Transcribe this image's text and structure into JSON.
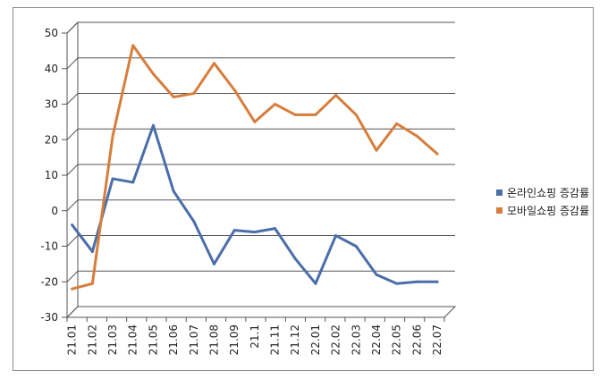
{
  "chart_data": {
    "type": "line",
    "title": "",
    "xlabel": "",
    "ylabel": "",
    "categories": [
      "21.01",
      "21.02",
      "21.03",
      "21.04",
      "21.05",
      "21.06",
      "21.07",
      "21.08",
      "21.09",
      "21.1",
      "21.11",
      "21.12",
      "22.01",
      "22.02",
      "22.03",
      "22.04",
      "22.05",
      "22.06",
      "22.07"
    ],
    "ylim": [
      -30,
      50
    ],
    "yticks": [
      -30,
      -20,
      -10,
      0,
      10,
      20,
      30,
      40,
      50
    ],
    "ytick_labels": [
      "-30",
      "-20",
      "-10",
      "0",
      "10",
      "20",
      "30",
      "40",
      "50"
    ],
    "grid": true,
    "legend_position": "right",
    "series": [
      {
        "name": "온라인쇼핑 증감률",
        "color": "#4a6ea9",
        "values": [
          -4,
          -11.5,
          9,
          8,
          24,
          5.5,
          -3,
          -15,
          -5.5,
          -6,
          -5,
          -13.5,
          -20.5,
          -7,
          -10,
          -18,
          -20.5,
          -20,
          -20
        ]
      },
      {
        "name": "모바일쇼핑 증감률",
        "color": "#d67e3c",
        "values": [
          -22,
          -20.5,
          21,
          46.5,
          38.5,
          32,
          33,
          41.5,
          34,
          25,
          30,
          27,
          27,
          32.5,
          27,
          17,
          24.5,
          21,
          16
        ]
      }
    ]
  }
}
